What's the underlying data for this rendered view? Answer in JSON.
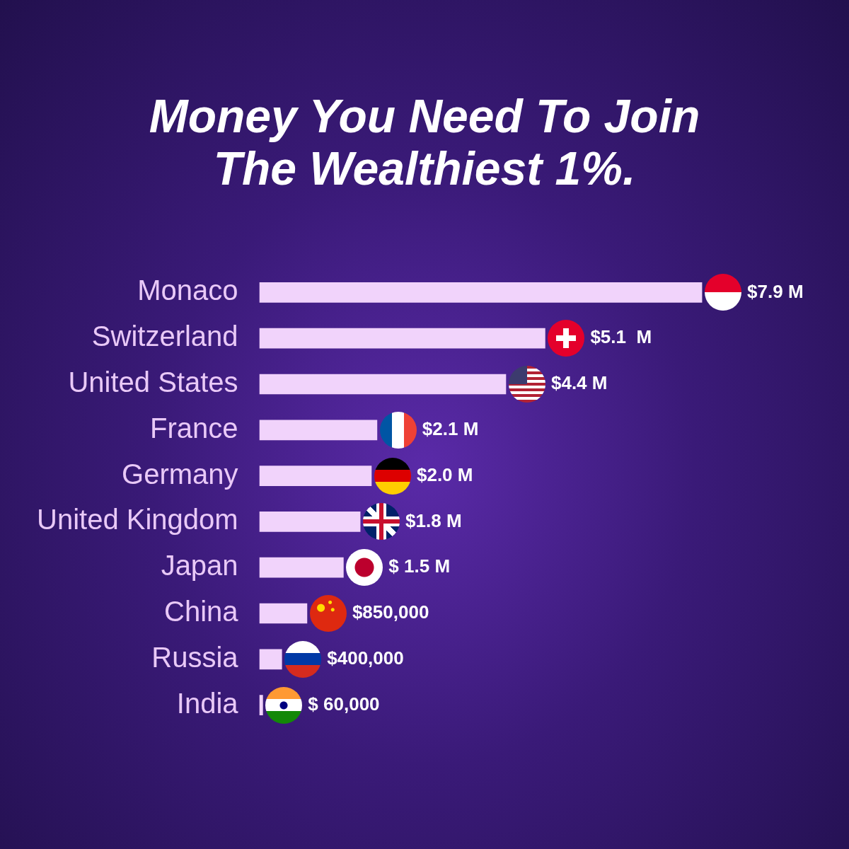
{
  "chart_data": {
    "type": "bar",
    "orientation": "horizontal",
    "title": "Money You Need To Join The Wealthiest 1%.",
    "categories": [
      "Monaco",
      "Switzerland",
      "United States",
      "France",
      "Germany",
      "United Kingdom",
      "Japan",
      "China",
      "Russia",
      "India"
    ],
    "values": [
      7900000,
      5100000,
      4400000,
      2100000,
      2000000,
      1800000,
      1500000,
      850000,
      400000,
      60000
    ],
    "value_labels": [
      "$7.9 M",
      "$5.1  M",
      "$4.4 M",
      "$2.1 M",
      "$2.0 M",
      "$1.8 M",
      "$ 1.5 M",
      "$850,000",
      "$400,000",
      "$ 60,000"
    ],
    "color": "#f1d3fb",
    "grid": false,
    "legend": false
  }
}
